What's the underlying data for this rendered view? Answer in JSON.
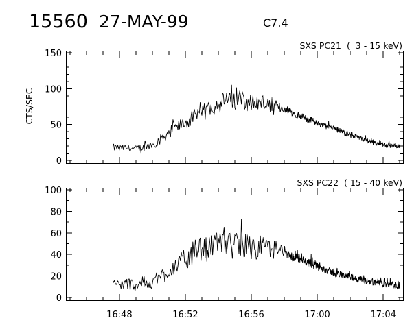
{
  "header": {
    "event_id": "15560",
    "date": "27-MAY-99",
    "goes_class": "C7.4"
  },
  "chart_data": [
    {
      "type": "line",
      "title": "SXS PC21  (  3 - 15 keV)",
      "xlabel": "",
      "ylabel": "CTS/SEC",
      "x_unit": "UT time (HH:MM)",
      "xlim": [
        "16:44.8",
        "17:05.2"
      ],
      "ylim": [
        0,
        150
      ],
      "yticks": [
        0,
        50,
        100,
        150
      ],
      "xticks": [
        "16:48",
        "16:52",
        "16:56",
        "17:00",
        "17:04"
      ],
      "grid": false,
      "series": [
        {
          "x": [
            "16:47.6",
            "16:48.0",
            "16:48.5",
            "16:49.0",
            "16:49.5",
            "16:50.0",
            "16:50.5",
            "16:51.0",
            "16:51.5",
            "16:52.0",
            "16:52.5",
            "16:53.0",
            "16:53.5",
            "16:54.0",
            "16:54.5",
            "16:55.0",
            "16:55.5",
            "16:56.0",
            "16:56.5",
            "16:57.0",
            "16:57.5",
            "16:58.0",
            "16:58.5",
            "16:59.0",
            "16:59.5",
            "17:00.0",
            "17:00.5",
            "17:01.0",
            "17:01.5",
            "17:02.0",
            "17:02.5",
            "17:03.0",
            "17:03.5",
            "17:04.0",
            "17:04.5",
            "17:05.0"
          ],
          "y": [
            18,
            17,
            17,
            16,
            18,
            22,
            30,
            38,
            46,
            52,
            59,
            66,
            74,
            80,
            83,
            85,
            84,
            82,
            80,
            78,
            74,
            72,
            66,
            62,
            57,
            52,
            48,
            44,
            40,
            36,
            32,
            28,
            25,
            22,
            20,
            19
          ],
          "noise": [
            6,
            6,
            6,
            6,
            7,
            8,
            9,
            10,
            11,
            12,
            13,
            14,
            15,
            16,
            16,
            17,
            16,
            15,
            14,
            13,
            12,
            6,
            6,
            6,
            6,
            5,
            5,
            5,
            5,
            5,
            4,
            4,
            4,
            4,
            4,
            4
          ],
          "density": [
            1.2,
            1.2,
            1.2,
            1.2,
            1.2,
            1.2,
            1.2,
            1.2,
            1.2,
            1.2,
            1.2,
            1.2,
            1.2,
            1.2,
            1.2,
            1.2,
            1.2,
            1.2,
            1.2,
            1.2,
            1.2,
            0.45,
            0.45,
            0.45,
            0.45,
            0.45,
            0.45,
            0.45,
            0.45,
            0.45,
            0.45,
            0.45,
            0.45,
            0.45,
            0.45,
            0.45
          ]
        }
      ]
    },
    {
      "type": "line",
      "title": "SXS PC22  ( 15 - 40 keV)",
      "xlabel": "",
      "ylabel": "",
      "x_unit": "UT time (HH:MM)",
      "xlim": [
        "16:44.8",
        "17:05.2"
      ],
      "ylim": [
        0,
        100
      ],
      "yticks": [
        0,
        20,
        40,
        60,
        80,
        100
      ],
      "xticks": [
        "16:48",
        "16:52",
        "16:56",
        "17:00",
        "17:04"
      ],
      "grid": false,
      "series": [
        {
          "x": [
            "16:47.6",
            "16:48.0",
            "16:48.5",
            "16:49.0",
            "16:49.5",
            "16:50.0",
            "16:50.5",
            "16:51.0",
            "16:51.5",
            "16:52.0",
            "16:52.5",
            "16:53.0",
            "16:53.5",
            "16:54.0",
            "16:54.5",
            "16:55.0",
            "16:55.5",
            "16:56.0",
            "16:56.5",
            "16:57.0",
            "16:57.5",
            "16:58.0",
            "16:58.5",
            "16:59.0",
            "16:59.5",
            "17:00.0",
            "17:00.5",
            "17:01.0",
            "17:01.5",
            "17:02.0",
            "17:02.5",
            "17:03.0",
            "17:03.5",
            "17:04.0",
            "17:04.5",
            "17:05.0"
          ],
          "y": [
            13,
            12,
            12,
            12,
            13,
            15,
            20,
            25,
            30,
            35,
            40,
            44,
            47,
            49,
            50,
            50,
            49,
            48,
            47,
            46,
            44,
            40,
            38,
            35,
            32,
            29,
            26,
            23,
            21,
            19,
            17,
            15,
            14,
            13,
            12,
            11
          ],
          "noise": [
            7,
            7,
            7,
            7,
            7,
            8,
            9,
            10,
            11,
            12,
            13,
            14,
            15,
            16,
            16,
            16,
            15,
            14,
            13,
            12,
            11,
            5,
            5,
            5,
            5,
            5,
            4,
            4,
            4,
            4,
            4,
            4,
            4,
            4,
            4,
            4
          ],
          "density": [
            1.2,
            1.2,
            1.2,
            1.2,
            1.2,
            1.2,
            1.2,
            1.2,
            1.2,
            1.2,
            1.2,
            1.2,
            1.2,
            1.2,
            1.2,
            1.2,
            1.2,
            1.2,
            1.2,
            1.2,
            1.2,
            0.45,
            0.45,
            0.45,
            0.45,
            0.45,
            0.45,
            0.45,
            0.45,
            0.45,
            0.45,
            0.45,
            0.45,
            0.45,
            0.45,
            0.45
          ]
        }
      ]
    }
  ]
}
